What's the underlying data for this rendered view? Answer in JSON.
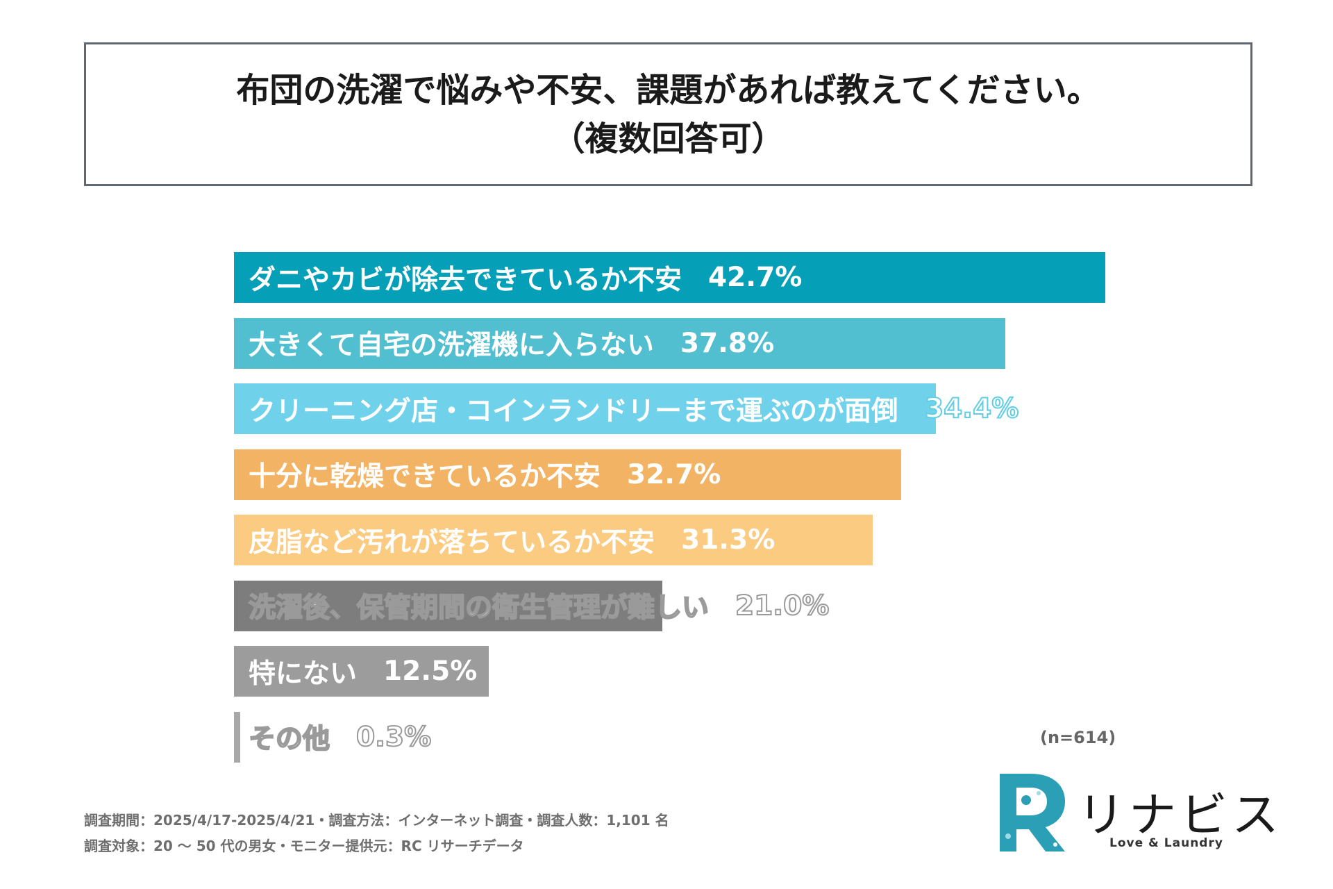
{
  "title": {
    "line1": "布団の洗濯で悩みや不安、課題があれば教えてください。",
    "line2": "（複数回答可）"
  },
  "chart_data": {
    "type": "bar",
    "orientation": "horizontal",
    "xlim": [
      0,
      42.7
    ],
    "categories": [
      "ダニやカビが除去できているか不安",
      "大きくて自宅の洗濯機に入らない",
      "クリーニング店・コインランドリーまで運ぶのが面倒",
      "十分に乾燥できているか不安",
      "皮脂など汚れが落ちているか不安",
      "洗濯後、保管期間の衛生管理が難しい",
      "特にない",
      "その他"
    ],
    "values": [
      42.7,
      37.8,
      34.4,
      32.7,
      31.3,
      21.0,
      12.5,
      0.3
    ],
    "value_labels": [
      "42.7%",
      "37.8%",
      "34.4%",
      "32.7%",
      "31.3%",
      "21.0%",
      "12.5%",
      "0.3%"
    ],
    "colors": [
      "#05a0b8",
      "#52bfd0",
      "#6fd2ea",
      "#f2b464",
      "#fbcb82",
      "#7d7d7d",
      "#9c9c9c",
      "#a8a8a8"
    ],
    "label_styles": [
      "plain",
      "plain",
      "outline-value",
      "plain",
      "plain",
      "outline",
      "plain",
      "outline"
    ]
  },
  "n_label": "(n=614)",
  "footer": {
    "line1": "調査期間：2025/4/17-2025/4/21・調査方法：インターネット調査・調査人数：1,101 名",
    "line2": "調査対象：20 ～ 50 代の男女・モニター提供元：RC リサーチデータ"
  },
  "logo": {
    "name": "リナビス",
    "tagline": "Love & Laundry",
    "icon": "r-laundry-logo-icon",
    "color": "#2a9fb5"
  }
}
